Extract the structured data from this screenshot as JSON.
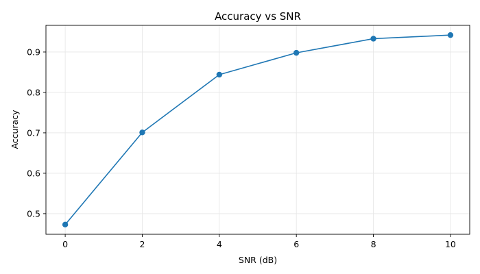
{
  "chart_data": {
    "type": "line",
    "title": "Accuracy vs SNR",
    "xlabel": "SNR (dB)",
    "ylabel": "Accuracy",
    "x": [
      0,
      2,
      4,
      6,
      8,
      10
    ],
    "series": [
      {
        "values": [
          0.473,
          0.701,
          0.844,
          0.898,
          0.933,
          0.942
        ]
      }
    ],
    "xlim": [
      -0.5,
      10.5
    ],
    "ylim": [
      0.449,
      0.966
    ],
    "xticks": [
      0,
      2,
      4,
      6,
      8,
      10
    ],
    "yticks": [
      0.5,
      0.6,
      0.7,
      0.8,
      0.9
    ],
    "xtick_labels": [
      "0",
      "2",
      "4",
      "6",
      "8",
      "10"
    ],
    "ytick_labels": [
      "0.5",
      "0.6",
      "0.7",
      "0.8",
      "0.9"
    ],
    "grid": true,
    "markers": true,
    "line_color": "#1f77b4",
    "grid_color": "#e6e6e6"
  }
}
